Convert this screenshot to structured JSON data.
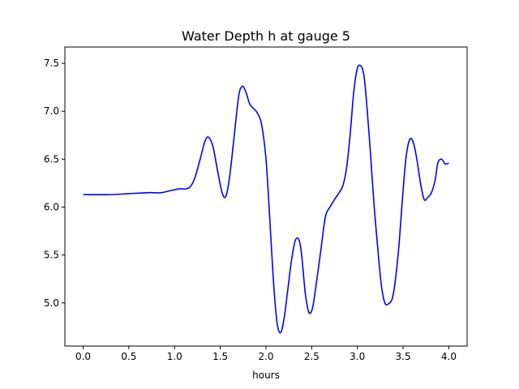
{
  "chart_data": {
    "type": "line",
    "title": "Water Depth h at gauge 5",
    "xlabel": "hours",
    "ylabel": "",
    "xlim": [
      -0.2,
      4.2
    ],
    "ylim": [
      4.55,
      7.67
    ],
    "xticks": [
      0.0,
      0.5,
      1.0,
      1.5,
      2.0,
      2.5,
      3.0,
      3.5,
      4.0
    ],
    "xtick_labels": [
      "0.0",
      "0.5",
      "1.0",
      "1.5",
      "2.0",
      "2.5",
      "3.0",
      "3.5",
      "4.0"
    ],
    "yticks": [
      5.0,
      5.5,
      6.0,
      6.5,
      7.0,
      7.5
    ],
    "ytick_labels": [
      "5.0",
      "5.5",
      "6.0",
      "6.5",
      "7.0",
      "7.5"
    ],
    "grid": false,
    "series": [
      {
        "color": "#0000ff",
        "x": [
          0.0,
          0.3,
          0.5,
          0.7,
          0.85,
          0.95,
          1.05,
          1.12,
          1.17,
          1.22,
          1.28,
          1.33,
          1.37,
          1.42,
          1.47,
          1.52,
          1.56,
          1.6,
          1.65,
          1.7,
          1.74,
          1.78,
          1.82,
          1.86,
          1.9,
          1.95,
          2.0,
          2.04,
          2.08,
          2.12,
          2.16,
          2.2,
          2.24,
          2.28,
          2.32,
          2.36,
          2.39,
          2.43,
          2.47,
          2.51,
          2.55,
          2.6,
          2.65,
          2.7,
          2.75,
          2.8,
          2.84,
          2.88,
          2.92,
          2.96,
          3.0,
          3.04,
          3.07,
          3.1,
          3.14,
          3.18,
          3.22,
          3.26,
          3.3,
          3.34,
          3.38,
          3.41,
          3.45,
          3.49,
          3.53,
          3.57,
          3.61,
          3.65,
          3.69,
          3.73,
          3.77,
          3.81,
          3.85,
          3.88,
          3.92,
          3.96,
          4.0
        ],
        "y": [
          6.13,
          6.13,
          6.14,
          6.15,
          6.15,
          6.17,
          6.19,
          6.19,
          6.21,
          6.3,
          6.5,
          6.68,
          6.73,
          6.63,
          6.38,
          6.15,
          6.11,
          6.3,
          6.72,
          7.15,
          7.26,
          7.2,
          7.08,
          7.03,
          6.99,
          6.87,
          6.5,
          5.9,
          5.25,
          4.8,
          4.69,
          4.85,
          5.15,
          5.45,
          5.65,
          5.66,
          5.5,
          5.1,
          4.9,
          4.95,
          5.2,
          5.55,
          5.9,
          6.0,
          6.08,
          6.15,
          6.22,
          6.4,
          6.75,
          7.2,
          7.45,
          7.47,
          7.38,
          7.1,
          6.6,
          6.05,
          5.6,
          5.2,
          5.0,
          4.99,
          5.04,
          5.2,
          5.55,
          6.05,
          6.5,
          6.7,
          6.68,
          6.5,
          6.25,
          6.08,
          6.1,
          6.15,
          6.28,
          6.46,
          6.5,
          6.45,
          6.46
        ]
      }
    ]
  }
}
